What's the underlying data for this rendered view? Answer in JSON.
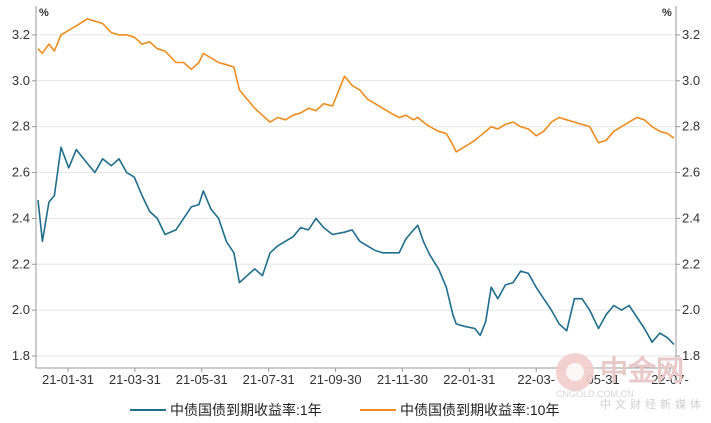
{
  "chart_data": {
    "type": "line",
    "left_unit": "%",
    "right_unit": "%",
    "ylim": [
      1.8,
      3.3
    ],
    "y_ticks": [
      "1.8",
      "2.0",
      "2.2",
      "2.4",
      "2.6",
      "2.8",
      "3.0",
      "3.2"
    ],
    "x_ticks": [
      "21-01-31",
      "21-03-31",
      "21-05-31",
      "21-07-31",
      "21-09-30",
      "21-11-30",
      "22-01-31",
      "22-03-",
      "05-31",
      "22-07-"
    ],
    "grid": true,
    "legend_position": "bottom",
    "series": [
      {
        "name": "中债国债到期收益率:1年",
        "color": "#1f6e8c",
        "points": [
          [
            "2021-01-04",
            2.48
          ],
          [
            "2021-01-08",
            2.3
          ],
          [
            "2021-01-14",
            2.47
          ],
          [
            "2021-01-19",
            2.5
          ],
          [
            "2021-01-25",
            2.71
          ],
          [
            "2021-02-01",
            2.62
          ],
          [
            "2021-02-08",
            2.7
          ],
          [
            "2021-02-18",
            2.64
          ],
          [
            "2021-02-25",
            2.6
          ],
          [
            "2021-03-04",
            2.66
          ],
          [
            "2021-03-12",
            2.63
          ],
          [
            "2021-03-19",
            2.66
          ],
          [
            "2021-03-26",
            2.6
          ],
          [
            "2021-04-02",
            2.58
          ],
          [
            "2021-04-09",
            2.5
          ],
          [
            "2021-04-16",
            2.43
          ],
          [
            "2021-04-23",
            2.4
          ],
          [
            "2021-04-30",
            2.33
          ],
          [
            "2021-05-10",
            2.35
          ],
          [
            "2021-05-17",
            2.4
          ],
          [
            "2021-05-24",
            2.45
          ],
          [
            "2021-05-31",
            2.46
          ],
          [
            "2021-06-04",
            2.52
          ],
          [
            "2021-06-11",
            2.44
          ],
          [
            "2021-06-18",
            2.4
          ],
          [
            "2021-06-25",
            2.3
          ],
          [
            "2021-07-02",
            2.25
          ],
          [
            "2021-07-07",
            2.12
          ],
          [
            "2021-07-14",
            2.15
          ],
          [
            "2021-07-21",
            2.18
          ],
          [
            "2021-07-28",
            2.15
          ],
          [
            "2021-08-04",
            2.25
          ],
          [
            "2021-08-11",
            2.28
          ],
          [
            "2021-08-18",
            2.3
          ],
          [
            "2021-08-25",
            2.32
          ],
          [
            "2021-09-01",
            2.36
          ],
          [
            "2021-09-08",
            2.35
          ],
          [
            "2021-09-15",
            2.4
          ],
          [
            "2021-09-22",
            2.36
          ],
          [
            "2021-09-30",
            2.33
          ],
          [
            "2021-10-11",
            2.34
          ],
          [
            "2021-10-18",
            2.35
          ],
          [
            "2021-10-25",
            2.3
          ],
          [
            "2021-11-01",
            2.28
          ],
          [
            "2021-11-08",
            2.26
          ],
          [
            "2021-11-15",
            2.25
          ],
          [
            "2021-11-22",
            2.25
          ],
          [
            "2021-11-30",
            2.25
          ],
          [
            "2021-12-06",
            2.31
          ],
          [
            "2021-12-13",
            2.35
          ],
          [
            "2021-12-17",
            2.37
          ],
          [
            "2021-12-22",
            2.3
          ],
          [
            "2021-12-28",
            2.24
          ],
          [
            "2022-01-05",
            2.18
          ],
          [
            "2022-01-12",
            2.1
          ],
          [
            "2022-01-18",
            1.98
          ],
          [
            "2022-01-21",
            1.94
          ],
          [
            "2022-01-28",
            1.93
          ],
          [
            "2022-02-07",
            1.92
          ],
          [
            "2022-02-12",
            1.89
          ],
          [
            "2022-02-17",
            1.95
          ],
          [
            "2022-02-22",
            2.1
          ],
          [
            "2022-02-28",
            2.05
          ],
          [
            "2022-03-07",
            2.11
          ],
          [
            "2022-03-14",
            2.12
          ],
          [
            "2022-03-21",
            2.17
          ],
          [
            "2022-03-28",
            2.16
          ],
          [
            "2022-04-04",
            2.1
          ],
          [
            "2022-04-11",
            2.05
          ],
          [
            "2022-04-18",
            2.0
          ],
          [
            "2022-04-25",
            1.94
          ],
          [
            "2022-05-02",
            1.91
          ],
          [
            "2022-05-09",
            2.05
          ],
          [
            "2022-05-16",
            2.05
          ],
          [
            "2022-05-23",
            2.0
          ],
          [
            "2022-05-31",
            1.92
          ],
          [
            "2022-06-07",
            1.98
          ],
          [
            "2022-06-14",
            2.02
          ],
          [
            "2022-06-21",
            2.0
          ],
          [
            "2022-06-28",
            2.02
          ],
          [
            "2022-07-05",
            1.97
          ],
          [
            "2022-07-12",
            1.92
          ],
          [
            "2022-07-19",
            1.86
          ],
          [
            "2022-07-26",
            1.9
          ],
          [
            "2022-08-02",
            1.88
          ],
          [
            "2022-08-08",
            1.85
          ]
        ]
      },
      {
        "name": "中债国债到期收益率:10年",
        "color": "#ef8c1e",
        "points": [
          [
            "2021-01-04",
            3.14
          ],
          [
            "2021-01-08",
            3.12
          ],
          [
            "2021-01-14",
            3.16
          ],
          [
            "2021-01-19",
            3.13
          ],
          [
            "2021-01-25",
            3.2
          ],
          [
            "2021-02-01",
            3.22
          ],
          [
            "2021-02-08",
            3.24
          ],
          [
            "2021-02-18",
            3.27
          ],
          [
            "2021-02-25",
            3.26
          ],
          [
            "2021-03-04",
            3.25
          ],
          [
            "2021-03-12",
            3.21
          ],
          [
            "2021-03-19",
            3.2
          ],
          [
            "2021-03-26",
            3.2
          ],
          [
            "2021-04-02",
            3.19
          ],
          [
            "2021-04-09",
            3.16
          ],
          [
            "2021-04-16",
            3.17
          ],
          [
            "2021-04-23",
            3.14
          ],
          [
            "2021-04-30",
            3.13
          ],
          [
            "2021-05-10",
            3.08
          ],
          [
            "2021-05-17",
            3.08
          ],
          [
            "2021-05-24",
            3.05
          ],
          [
            "2021-05-31",
            3.08
          ],
          [
            "2021-06-04",
            3.12
          ],
          [
            "2021-06-11",
            3.1
          ],
          [
            "2021-06-18",
            3.08
          ],
          [
            "2021-06-25",
            3.07
          ],
          [
            "2021-07-02",
            3.06
          ],
          [
            "2021-07-07",
            2.96
          ],
          [
            "2021-07-14",
            2.92
          ],
          [
            "2021-07-21",
            2.88
          ],
          [
            "2021-07-28",
            2.85
          ],
          [
            "2021-08-04",
            2.82
          ],
          [
            "2021-08-11",
            2.84
          ],
          [
            "2021-08-18",
            2.83
          ],
          [
            "2021-08-25",
            2.85
          ],
          [
            "2021-09-01",
            2.86
          ],
          [
            "2021-09-08",
            2.88
          ],
          [
            "2021-09-15",
            2.87
          ],
          [
            "2021-09-22",
            2.9
          ],
          [
            "2021-09-30",
            2.89
          ],
          [
            "2021-10-11",
            3.02
          ],
          [
            "2021-10-18",
            2.98
          ],
          [
            "2021-10-25",
            2.96
          ],
          [
            "2021-11-01",
            2.92
          ],
          [
            "2021-11-08",
            2.9
          ],
          [
            "2021-11-15",
            2.88
          ],
          [
            "2021-11-22",
            2.86
          ],
          [
            "2021-11-30",
            2.84
          ],
          [
            "2021-12-06",
            2.85
          ],
          [
            "2021-12-13",
            2.83
          ],
          [
            "2021-12-17",
            2.84
          ],
          [
            "2021-12-22",
            2.82
          ],
          [
            "2021-12-28",
            2.8
          ],
          [
            "2022-01-05",
            2.78
          ],
          [
            "2022-01-12",
            2.77
          ],
          [
            "2022-01-18",
            2.72
          ],
          [
            "2022-01-21",
            2.69
          ],
          [
            "2022-01-28",
            2.71
          ],
          [
            "2022-02-07",
            2.74
          ],
          [
            "2022-02-12",
            2.76
          ],
          [
            "2022-02-17",
            2.78
          ],
          [
            "2022-02-22",
            2.8
          ],
          [
            "2022-02-28",
            2.79
          ],
          [
            "2022-03-07",
            2.81
          ],
          [
            "2022-03-14",
            2.82
          ],
          [
            "2022-03-21",
            2.8
          ],
          [
            "2022-03-28",
            2.79
          ],
          [
            "2022-04-04",
            2.76
          ],
          [
            "2022-04-11",
            2.78
          ],
          [
            "2022-04-18",
            2.82
          ],
          [
            "2022-04-25",
            2.84
          ],
          [
            "2022-05-02",
            2.83
          ],
          [
            "2022-05-09",
            2.82
          ],
          [
            "2022-05-16",
            2.81
          ],
          [
            "2022-05-23",
            2.8
          ],
          [
            "2022-05-31",
            2.73
          ],
          [
            "2022-06-07",
            2.74
          ],
          [
            "2022-06-14",
            2.78
          ],
          [
            "2022-06-21",
            2.8
          ],
          [
            "2022-06-28",
            2.82
          ],
          [
            "2022-07-05",
            2.84
          ],
          [
            "2022-07-12",
            2.83
          ],
          [
            "2022-07-19",
            2.8
          ],
          [
            "2022-07-26",
            2.78
          ],
          [
            "2022-08-02",
            2.77
          ],
          [
            "2022-08-08",
            2.75
          ]
        ]
      }
    ]
  },
  "watermark": {
    "logo_text": "中金网",
    "site": "CNGOLD.COM.CN",
    "tagline": "中文财经新媒体"
  }
}
